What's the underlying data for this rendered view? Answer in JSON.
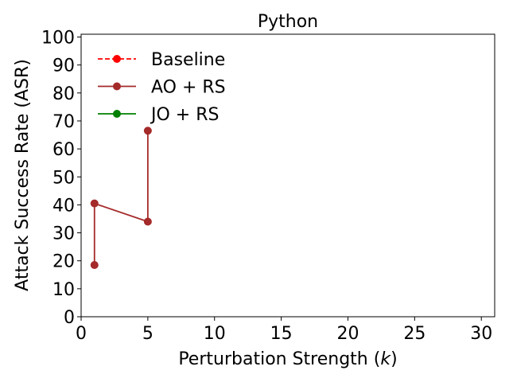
{
  "chart_data": {
    "type": "line",
    "title": "Python",
    "xlabel_text": "Perturbation Strength (",
    "xlabel_var": "k",
    "xlabel_end": ")",
    "ylabel": "Attack Success Rate (ASR)",
    "xlim": [
      0,
      31
    ],
    "ylim": [
      0,
      101
    ],
    "xticks": [
      0,
      5,
      10,
      15,
      20,
      25,
      30
    ],
    "yticks": [
      0,
      10,
      20,
      30,
      40,
      50,
      60,
      70,
      80,
      90,
      100
    ],
    "legend_position": "upper-left",
    "series": [
      {
        "name": "Baseline",
        "color": "#ff0000",
        "dashed": true,
        "x": [],
        "y": []
      },
      {
        "name": "AO + RS",
        "color": "#a52a2a",
        "dashed": false,
        "x": [
          1,
          1,
          5,
          5
        ],
        "y": [
          18.5,
          40.5,
          34,
          66.5
        ]
      },
      {
        "name": "JO + RS",
        "color": "#008000",
        "dashed": false,
        "x": [],
        "y": []
      }
    ]
  }
}
